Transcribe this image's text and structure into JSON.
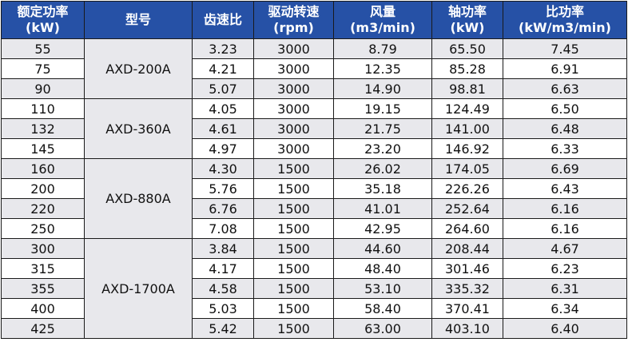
{
  "headers": [
    {
      "line1": "额定功率",
      "line2": "(kW)"
    },
    {
      "line1": "型号",
      "line2": ""
    },
    {
      "line1": "齿速比",
      "line2": ""
    },
    {
      "line1": "驱动转速",
      "line2": "(rpm)"
    },
    {
      "line1": "风量",
      "line2": "(m3/min)"
    },
    {
      "line1": "轴功率",
      "line2": "(kW)"
    },
    {
      "line1": "比功率",
      "line2": "(kW/m3/min)"
    }
  ],
  "models": [
    "AXD-200A",
    "AXD-360A",
    "AXD-880A",
    "AXD-1700A"
  ],
  "rows": [
    {
      "power": "55",
      "ratio": "3.23",
      "speed": "3000",
      "flow": "8.79",
      "shaft": "65.50",
      "specific": "7.45"
    },
    {
      "power": "75",
      "ratio": "4.21",
      "speed": "3000",
      "flow": "12.35",
      "shaft": "85.28",
      "specific": "6.91"
    },
    {
      "power": "90",
      "ratio": "5.07",
      "speed": "3000",
      "flow": "14.90",
      "shaft": "98.81",
      "specific": "6.63"
    },
    {
      "power": "110",
      "ratio": "4.05",
      "speed": "3000",
      "flow": "19.15",
      "shaft": "124.49",
      "specific": "6.50"
    },
    {
      "power": "132",
      "ratio": "4.61",
      "speed": "3000",
      "flow": "21.75",
      "shaft": "141.00",
      "specific": "6.48"
    },
    {
      "power": "145",
      "ratio": "4.97",
      "speed": "3000",
      "flow": "23.20",
      "shaft": "146.92",
      "specific": "6.33"
    },
    {
      "power": "160",
      "ratio": "4.30",
      "speed": "1500",
      "flow": "26.02",
      "shaft": "174.05",
      "specific": "6.69"
    },
    {
      "power": "200",
      "ratio": "5.76",
      "speed": "1500",
      "flow": "35.18",
      "shaft": "226.26",
      "specific": "6.43"
    },
    {
      "power": "220",
      "ratio": "6.76",
      "speed": "1500",
      "flow": "41.01",
      "shaft": "252.64",
      "specific": "6.16"
    },
    {
      "power": "250",
      "ratio": "7.08",
      "speed": "1500",
      "flow": "42.95",
      "shaft": "264.60",
      "specific": "6.16"
    },
    {
      "power": "300",
      "ratio": "3.84",
      "speed": "1500",
      "flow": "44.60",
      "shaft": "208.44",
      "specific": "4.67"
    },
    {
      "power": "315",
      "ratio": "4.17",
      "speed": "1500",
      "flow": "48.40",
      "shaft": "301.46",
      "specific": "6.23"
    },
    {
      "power": "355",
      "ratio": "4.58",
      "speed": "1500",
      "flow": "53.10",
      "shaft": "335.32",
      "specific": "6.31"
    },
    {
      "power": "400",
      "ratio": "5.03",
      "speed": "1500",
      "flow": "58.40",
      "shaft": "370.41",
      "specific": "6.34"
    },
    {
      "power": "425",
      "ratio": "5.42",
      "speed": "1500",
      "flow": "63.00",
      "shaft": "403.10",
      "specific": "6.40"
    }
  ],
  "colors": {
    "header_bg": "#2651a6",
    "header_text": "#ffffff",
    "shaded_bg": "#e8e8ec",
    "border": "#1a1a1a"
  }
}
